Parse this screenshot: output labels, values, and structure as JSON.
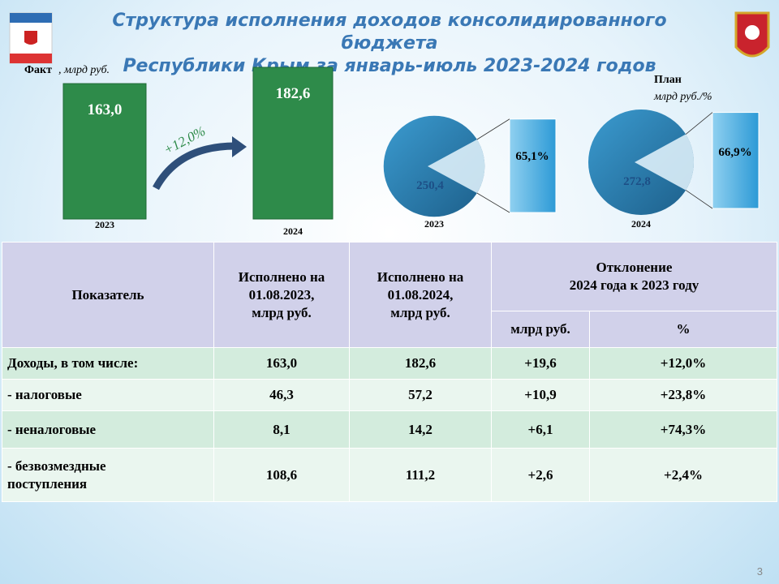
{
  "header": {
    "title": "Структура исполнения доходов консолидированного бюджета\nРеспублики Крым за январь-июль 2023-2024 годов",
    "page_number": "3"
  },
  "fact": {
    "type": "bar",
    "label": "Факт",
    "unit": ", млрд руб.",
    "categories": [
      "2023",
      "2024"
    ],
    "values": [
      163.0,
      182.6
    ],
    "value_labels": [
      "163,0",
      "182,6"
    ],
    "color": "#2e8b4a",
    "growth_label": "+12,0%"
  },
  "plan": {
    "type": "pie",
    "label": "План",
    "unit": "млрд руб./%",
    "items": [
      {
        "year": "2023",
        "total": 250.4,
        "total_label": "250,4",
        "share": 65.1,
        "share_label": "65,1%"
      },
      {
        "year": "2024",
        "total": 272.8,
        "total_label": "272,8",
        "share": 66.9,
        "share_label": "66,9%"
      }
    ]
  },
  "table": {
    "header": [
      "Показатель",
      "Исполнено на\n01.08.2023,\nмлрд руб.",
      "Исполнено на\n01.08.2024,\nмлрд руб.",
      "Отклонение\n2024 года к 2023 году"
    ],
    "subheader": [
      "млрд руб.",
      "%"
    ],
    "rows": [
      [
        "Доходы,  в том числе:",
        "163,0",
        "182,6",
        "+19,6",
        "+12,0%"
      ],
      [
        " - налоговые",
        "46,3",
        "57,2",
        "+10,9",
        "+23,8%"
      ],
      [
        "- неналоговые",
        "8,1",
        "14,2",
        "+6,1",
        "+74,3%"
      ],
      [
        "- безвозмездные\nпоступления",
        "108,6",
        "111,2",
        "+2,6",
        "+2,4%"
      ]
    ]
  }
}
